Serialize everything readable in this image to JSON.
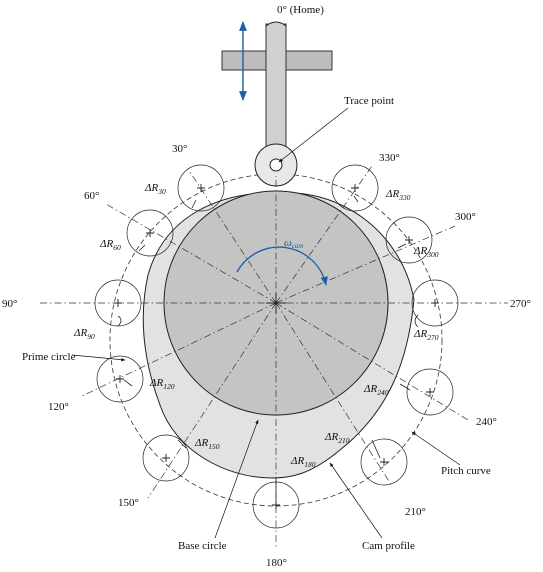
{
  "labels": {
    "home": "0° (Home)",
    "trace_point": "Trace point",
    "omega_main": "ω",
    "omega_sub": "cam",
    "prime_circle": "Prime circle",
    "pitch_curve": "Pitch curve",
    "base_circle": "Base circle",
    "cam_profile": "Cam profile",
    "bottom_angle": "180°"
  },
  "angle_labels": [
    {
      "id": "a30",
      "text": "30°"
    },
    {
      "id": "a60",
      "text": "60°"
    },
    {
      "id": "a90",
      "text": "90°"
    },
    {
      "id": "a120",
      "text": "120°"
    },
    {
      "id": "a150",
      "text": "150°"
    },
    {
      "id": "a210",
      "text": "210°"
    },
    {
      "id": "a240",
      "text": "240°"
    },
    {
      "id": "a270",
      "text": "270°"
    },
    {
      "id": "a300",
      "text": "300°"
    },
    {
      "id": "a330",
      "text": "330°"
    }
  ],
  "delta_labels": [
    {
      "id": "d30",
      "main": "ΔR",
      "sub": "30"
    },
    {
      "id": "d60",
      "main": "ΔR",
      "sub": "60"
    },
    {
      "id": "d90",
      "main": "ΔR",
      "sub": "90"
    },
    {
      "id": "d120",
      "main": "ΔR",
      "sub": "120"
    },
    {
      "id": "d150",
      "main": "ΔR",
      "sub": "150"
    },
    {
      "id": "d180",
      "main": "ΔR",
      "sub": "180"
    },
    {
      "id": "d210",
      "main": "ΔR",
      "sub": "210"
    },
    {
      "id": "d240",
      "main": "ΔR",
      "sub": "240"
    },
    {
      "id": "d270",
      "main": "ΔR",
      "sub": "270"
    },
    {
      "id": "d300",
      "main": "ΔR",
      "sub": "300"
    },
    {
      "id": "d330",
      "main": "ΔR",
      "sub": "330"
    }
  ],
  "colors": {
    "cam_fill": "#e2e2e2",
    "base_fill": "#c4c4c4",
    "follower_fill": "#bdbdbd",
    "arrow_blue": "#1e5fa8"
  },
  "icons": [
    "updown-arrow-icon",
    "rotation-arrow-icon"
  ]
}
